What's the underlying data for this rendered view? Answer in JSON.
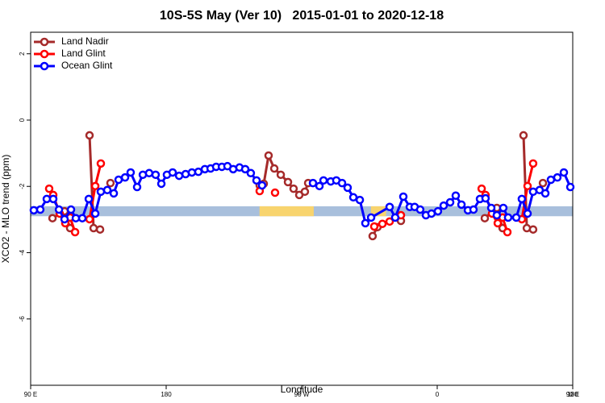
{
  "chart_data": {
    "type": "line",
    "title": "10S-5S May (Ver 10)   2015-01-01 to 2020-12-18",
    "x_label": "Longitude",
    "y_label": "XCO2 - MLO trend (ppm)",
    "xlim": [
      90,
      450
    ],
    "ylim": [
      -8,
      2.65
    ],
    "xticks": [
      {
        "value": 90,
        "label": "90 E"
      },
      180,
      {
        "value": 270,
        "label": "90 W"
      },
      {
        "value": 360,
        "label": "0"
      },
      {
        "value": 450,
        "label": "90 E"
      },
      {
        "value": 540,
        "label": "180"
      }
    ],
    "yticks": [
      2,
      0,
      -2,
      -4,
      -6
    ],
    "grid": false,
    "legend": "top-left",
    "band": {
      "ylim": [
        -2.9,
        -2.6
      ],
      "color": "#a8bfdc",
      "segment_color": "#f8d46e",
      "segments": [
        [
          242,
          278
        ],
        [
          316,
          326
        ]
      ]
    },
    "series": [
      {
        "name": "Land Nadir",
        "color": "#a52a2a",
        "x": [
          104.5,
          112.5,
          116.2,
          null,
          129.1,
          131.8,
          136.1,
          null,
          143.0,
          null,
          242.1,
          244.8,
          248.0,
          251.8,
          256.1,
          260.9,
          264.6,
          268.4,
          272.1,
          274.3,
          null,
          317.1,
          320.3,
          null,
          335.9,
          null,
          391.6,
          399.6,
          403.4,
          null,
          417.3,
          419.5,
          423.7,
          null,
          430.2
        ],
        "values": [
          -2.96,
          -2.75,
          -3.26,
          null,
          -0.46,
          -3.26,
          -3.3,
          null,
          -1.9,
          null,
          -1.97,
          -1.92,
          -1.07,
          -1.46,
          -1.65,
          -1.87,
          -2.07,
          -2.26,
          -2.16,
          -1.9,
          null,
          -3.5,
          -3.23,
          null,
          -3.04,
          null,
          -2.96,
          -2.65,
          -3.26,
          null,
          -0.46,
          -3.26,
          -3.3,
          null,
          -1.9
        ]
      },
      {
        "name": "Land Glint",
        "color": "#ff0000",
        "x": [
          102.3,
          105.0,
          109.3,
          113.0,
          116.2,
          119.5,
          null,
          129.1,
          132.9,
          136.6,
          null,
          242.1,
          null,
          252.3,
          null,
          318.2,
          323.6,
          328.4,
          335.9,
          null,
          389.5,
          392.1,
          396.4,
          400.2,
          403.4,
          406.6,
          null,
          416.2,
          420.0,
          423.7
        ],
        "values": [
          -2.07,
          -2.26,
          -2.82,
          -3.11,
          -2.94,
          -3.38,
          null,
          -2.99,
          -1.99,
          -1.31,
          null,
          -2.14,
          null,
          -2.19,
          null,
          -3.21,
          -3.13,
          -3.06,
          -2.87,
          null,
          -2.07,
          -2.26,
          -2.82,
          -3.11,
          -2.94,
          -3.38,
          null,
          -2.99,
          -1.99,
          -1.31
        ]
      },
      {
        "name": "Ocean Glint",
        "color": "#0000ff",
        "x": [
          92.1,
          96.4,
          100.7,
          105.0,
          108.8,
          112.5,
          116.8,
          120.0,
          124.3,
          128.6,
          132.9,
          136.6,
          140.9,
          145.2,
          148.4,
          152.7,
          156.4,
          160.7,
          164.5,
          168.7,
          173.0,
          176.8,
          180.5,
          184.3,
          188.6,
          192.9,
          197.1,
          201.4,
          205.7,
          209.5,
          213.2,
          217.0,
          220.7,
          224.5,
          228.7,
          232.5,
          236.2,
          240.0,
          243.7,
          null,
          277.5,
          281.8,
          284.5,
          289.3,
          293.0,
          296.8,
          300.5,
          304.3,
          308.6,
          312.3,
          316.1,
          328.4,
          332.1,
          337.5,
          341.8,
          345.0,
          348.7,
          352.5,
          356.2,
          360.5,
          364.3,
          368.6,
          372.3,
          376.1,
          380.4,
          384.1,
          388.4,
          392.1,
          395.9,
          399.6,
          403.9,
          407.1,
          412.5,
          416.2,
          420.0,
          423.7,
          428.0,
          431.8,
          435.5,
          439.8,
          444.1,
          448.4
        ],
        "values": [
          -2.72,
          -2.7,
          -2.38,
          -2.38,
          -2.7,
          -2.99,
          -2.7,
          -2.96,
          -2.96,
          -2.38,
          -2.82,
          -2.16,
          -2.11,
          -2.21,
          -1.8,
          -1.73,
          -1.58,
          -2.02,
          -1.65,
          -1.6,
          -1.65,
          -1.92,
          -1.65,
          -1.58,
          -1.68,
          -1.63,
          -1.58,
          -1.56,
          -1.48,
          -1.46,
          -1.41,
          -1.41,
          -1.39,
          -1.48,
          -1.43,
          -1.48,
          -1.6,
          -1.82,
          -1.97,
          null,
          -1.9,
          -1.99,
          -1.82,
          -1.85,
          -1.82,
          -1.9,
          -2.04,
          -2.33,
          -2.41,
          -3.11,
          -2.94,
          -2.62,
          -2.94,
          -2.31,
          -2.62,
          -2.62,
          -2.7,
          -2.87,
          -2.82,
          -2.75,
          -2.58,
          -2.48,
          -2.28,
          -2.55,
          -2.72,
          -2.7,
          -2.38,
          -2.36,
          -2.65,
          -2.87,
          -2.65,
          -2.94,
          -2.94,
          -2.38,
          -2.82,
          -2.16,
          -2.11,
          -2.21,
          -1.8,
          -1.73,
          -1.58,
          -2.02
        ]
      }
    ]
  }
}
